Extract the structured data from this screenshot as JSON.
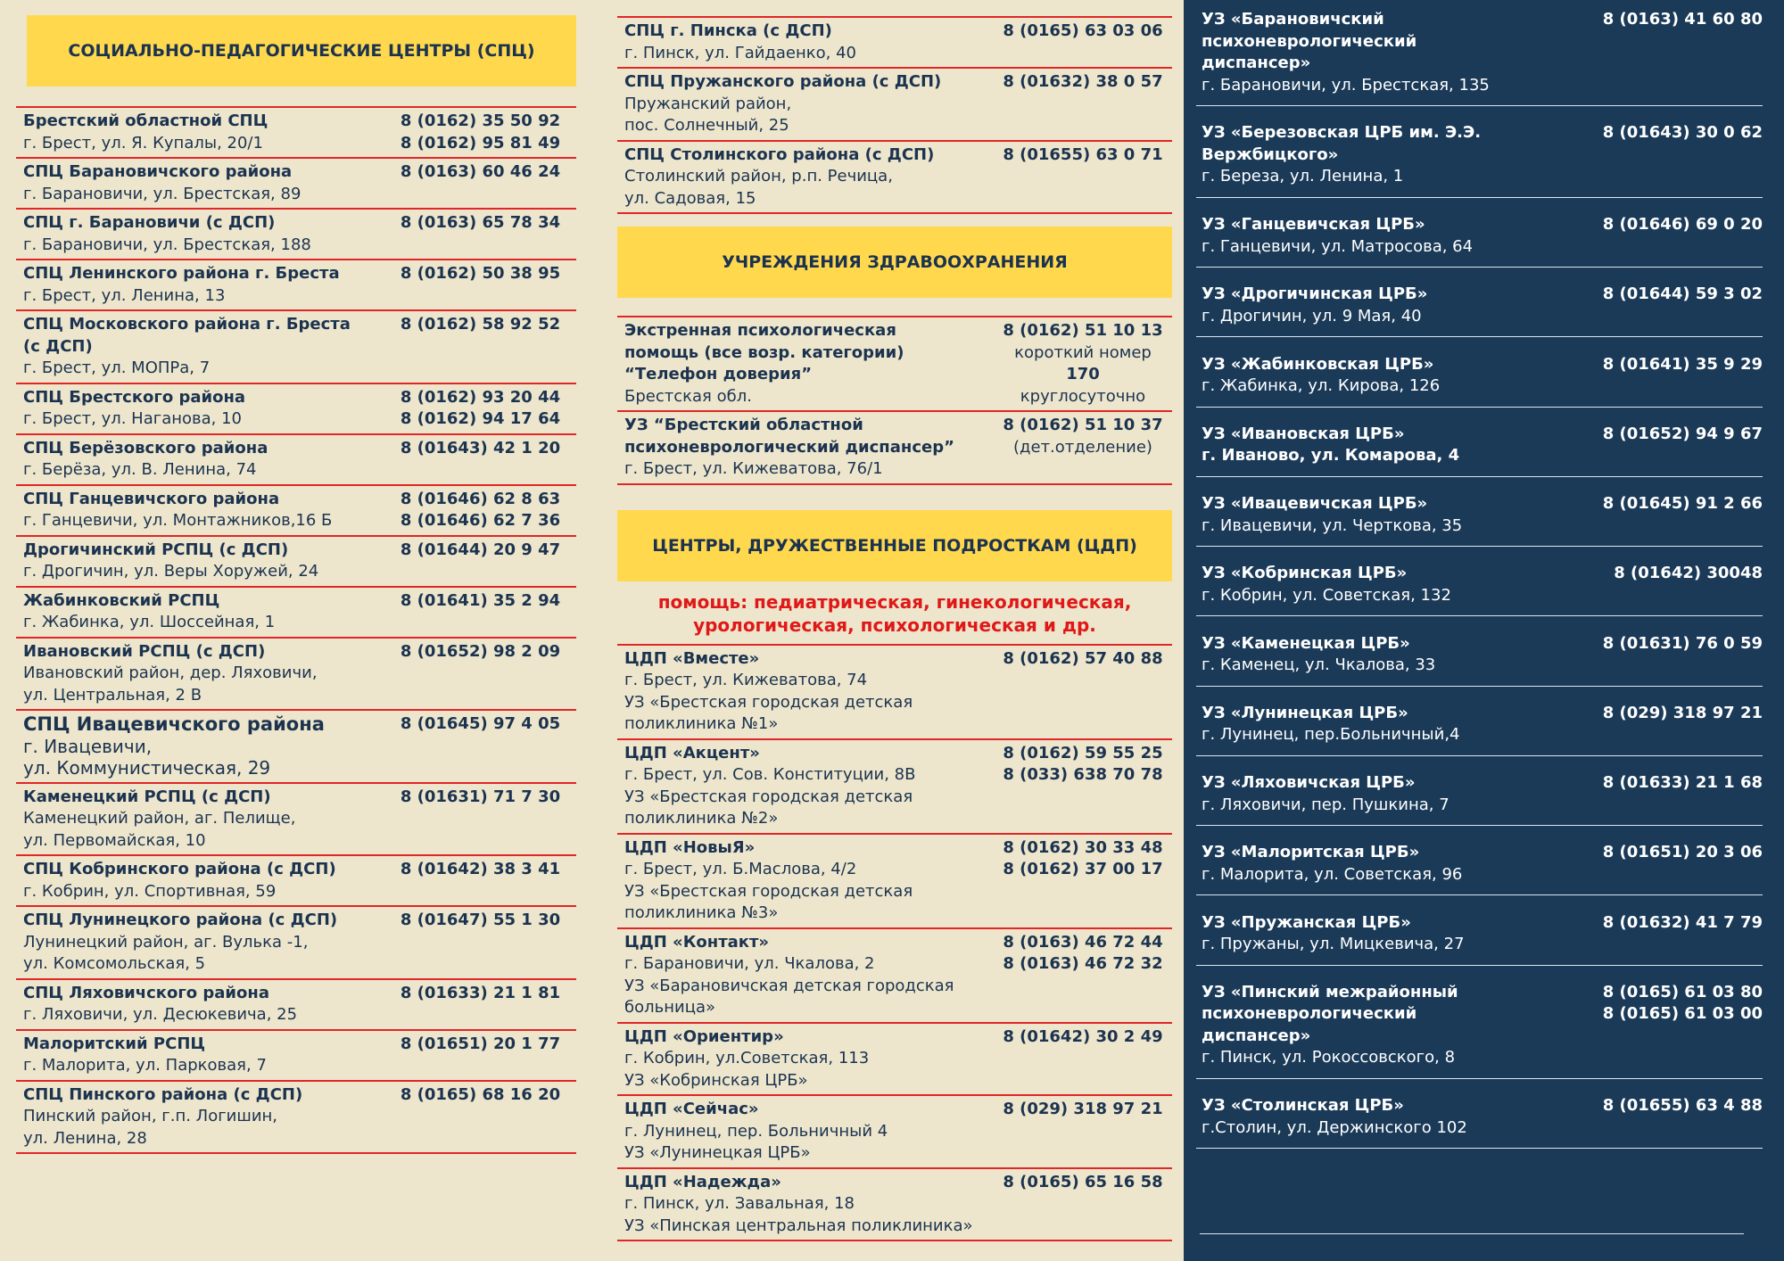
{
  "spc": {
    "title": "СОЦИАЛЬНО-ПЕДАГОГИЧЕСКИЕ ЦЕНТРЫ (СПЦ)",
    "entries": [
      {
        "name": [
          "Брестский областной СПЦ"
        ],
        "address": [
          "г. Брест, ул. Я. Купалы, 20/1"
        ],
        "phones": [
          "8 (0162) 35 50 92",
          "8 (0162) 95 81 49"
        ]
      },
      {
        "name": [
          "СПЦ Барановичского района"
        ],
        "address": [
          "г. Барановичи, ул. Брестская, 89"
        ],
        "phones": [
          "8 (0163) 60 46 24"
        ]
      },
      {
        "name": [
          "СПЦ г. Барановичи (с ДСП)"
        ],
        "address": [
          "г. Барановичи, ул. Брестская, 188"
        ],
        "phones": [
          "8 (0163) 65 78 34"
        ]
      },
      {
        "name": [
          "СПЦ Ленинского района г. Бреста"
        ],
        "address": [
          "г. Брест, ул. Ленина, 13"
        ],
        "phones": [
          "8 (0162) 50 38 95"
        ]
      },
      {
        "name": [
          "СПЦ Московского района г. Бреста",
          "(с ДСП)"
        ],
        "address": [
          "г. Брест, ул. МОПРа, 7"
        ],
        "phones": [
          "8 (0162) 58 92 52"
        ]
      },
      {
        "name": [
          "СПЦ Брестского района"
        ],
        "address": [
          "г. Брест, ул. Наганова, 10"
        ],
        "phones": [
          "8 (0162) 93 20 44",
          "8 (0162) 94 17 64"
        ]
      },
      {
        "name": [
          "СПЦ Берёзовского района"
        ],
        "address": [
          "г. Берёза, ул. В. Ленина, 74"
        ],
        "phones": [
          "8 (01643) 42 1 20"
        ]
      },
      {
        "name": [
          "СПЦ Ганцевичского района"
        ],
        "address": [
          "г. Ганцевичи, ул. Монтажников,16 Б"
        ],
        "phones": [
          "8 (01646) 62 8 63",
          "8 (01646) 62 7 36"
        ]
      },
      {
        "name": [
          "Дрогичинский РСПЦ (с ДСП)"
        ],
        "address": [
          "г. Дрогичин, ул. Веры Хоружей, 24"
        ],
        "phones": [
          "8 (01644) 20 9 47"
        ]
      },
      {
        "name": [
          "Жабинковский РСПЦ"
        ],
        "address": [
          "г. Жабинка, ул. Шоссейная, 1"
        ],
        "phones": [
          "8 (01641) 35 2 94"
        ]
      },
      {
        "name": [
          "Ивановский РСПЦ (с ДСП)"
        ],
        "address": [
          "Ивановский район, дер. Ляховичи,",
          "ул. Центральная, 2 В"
        ],
        "phones": [
          "8 (01652) 98 2 09"
        ]
      },
      {
        "name": [
          "СПЦ Ивацевичского района"
        ],
        "address": [
          "г. Ивацевичи,",
          "ул. Коммунистическая, 29"
        ],
        "phones": [
          "8 (01645) 97 4 05"
        ]
      },
      {
        "name": [
          "Каменецкий РСПЦ (с ДСП)"
        ],
        "address": [
          "Каменецкий район, аг. Пелище,",
          "ул. Первомайская, 10"
        ],
        "phones": [
          "8 (01631) 71 7 30"
        ]
      },
      {
        "name": [
          "СПЦ Кобринского района (с ДСП)"
        ],
        "address": [
          "г. Кобрин, ул. Спортивная, 59"
        ],
        "phones": [
          "8 (01642) 38 3 41"
        ]
      },
      {
        "name": [
          "СПЦ Лунинецкого района (с ДСП)"
        ],
        "address": [
          "Лунинецкий район, аг. Вулька -1,",
          "ул. Комсомольская, 5"
        ],
        "phones": [
          "8 (01647) 55 1 30"
        ]
      },
      {
        "name": [
          "СПЦ Ляховичского района"
        ],
        "address": [
          "г. Ляховичи, ул. Десюкевича, 25"
        ],
        "phones": [
          "8 (01633) 21 1 81"
        ]
      },
      {
        "name": [
          "Малоритский РСПЦ"
        ],
        "address": [
          "г. Малорита, ул. Парковая, 7"
        ],
        "phones": [
          "8 (01651) 20 1 77"
        ]
      },
      {
        "name": [
          "СПЦ Пинского района (с ДСП)"
        ],
        "address": [
          "Пинский район, г.п. Логишин,",
          "ул. Ленина, 28"
        ],
        "phones": [
          "8 (0165) 68 16 20"
        ]
      }
    ]
  },
  "spc_continued": {
    "entries": [
      {
        "name": [
          "СПЦ г. Пинска (с ДСП)"
        ],
        "address": [
          "г. Пинск, ул. Гайдаенко, 40"
        ],
        "phones": [
          "8 (0165) 63 03 06"
        ]
      },
      {
        "name": [
          "СПЦ Пружанского района (с ДСП)"
        ],
        "address": [
          "Пружанский район,",
          "пос. Солнечный, 25"
        ],
        "phones": [
          "8 (01632) 38 0 57"
        ]
      },
      {
        "name": [
          "СПЦ Столинского района (с ДСП)"
        ],
        "address": [
          "Столинский район, р.п. Речица,",
          "ул. Садовая, 15"
        ],
        "phones": [
          "8 (01655) 63 0 71"
        ]
      }
    ]
  },
  "health": {
    "title": "УЧРЕЖДЕНИЯ ЗДРАВООХРАНЕНИЯ",
    "entries": [
      {
        "name": [
          "Экстренная психологическая",
          "помощь  (все возр. категории)",
          "“Телефон доверия”"
        ],
        "address": [
          "Брестская обл."
        ],
        "phones": [
          "8 (0162) 51 10 13",
          "короткий номер",
          "170",
          "круглосуточно"
        ]
      },
      {
        "name": [
          "УЗ “Брестский областной",
          "психоневрологический диспансер”"
        ],
        "address": [
          "г. Брест, ул. Кижеватова, 76/1"
        ],
        "phones": [
          "8 (0162) 51 10 37",
          "(дет.отделение)"
        ]
      }
    ]
  },
  "cdp": {
    "title": "ЦЕНТРЫ, ДРУЖЕСТВЕННЫЕ ПОДРОСТКАМ (ЦДП)",
    "note": [
      "помощь: педиатрическая, гинекологическая,",
      "урологическая, психологическая и др."
    ],
    "entries": [
      {
        "name": [
          "ЦДП «Вместе»"
        ],
        "address": [
          "г. Брест, ул. Кижеватова, 74",
          "УЗ «Брестская городская детская поликлиника №1»"
        ],
        "phones": [
          "8 (0162) 57 40 88"
        ]
      },
      {
        "name": [
          "ЦДП «Акцент»"
        ],
        "address": [
          "г. Брест, ул. Сов. Конституции, 8В",
          "УЗ «Брестская городская детская поликлиника №2»"
        ],
        "phones": [
          "8 (0162) 59 55 25",
          "8 (033) 638 70 78"
        ]
      },
      {
        "name": [
          "ЦДП «НовыЯ»"
        ],
        "address": [
          "г. Брест, ул. Б.Маслова, 4/2",
          "УЗ «Брестская городская детская поликлиника №3»"
        ],
        "phones": [
          "8 (0162) 30 33 48",
          "8 (0162) 37 00 17"
        ]
      },
      {
        "name": [
          "ЦДП «Контакт»"
        ],
        "address": [
          "г. Барановичи, ул. Чкалова, 2",
          "УЗ «Барановичская детская городская больница»"
        ],
        "phones": [
          "8 (0163) 46 72 44",
          "8 (0163) 46 72 32"
        ]
      },
      {
        "name": [
          "ЦДП «Ориентир»"
        ],
        "address": [
          "г. Кобрин, ул.Советская, 113",
          "УЗ «Кобринская ЦРБ»"
        ],
        "phones": [
          "8 (01642) 30 2 49"
        ]
      },
      {
        "name": [
          "ЦДП «Сейчас»"
        ],
        "address": [
          "г. Лунинец, пер. Больничный 4",
          "УЗ «Лунинецкая ЦРБ»"
        ],
        "phones": [
          "8 (029) 318 97 21"
        ]
      },
      {
        "name": [
          "ЦДП «Надежда»"
        ],
        "address": [
          "г. Пинск, ул. Завальная, 18",
          "УЗ «Пинская центральная поликлиника»"
        ],
        "phones": [
          "8 (0165) 65 16 58"
        ]
      }
    ]
  },
  "hospitals": {
    "entries": [
      {
        "name": [
          "УЗ «Барановичский",
          "психоневрологический",
          "диспансер»"
        ],
        "address": [
          "г. Барановичи, ул. Брестская, 135"
        ],
        "phones": [
          "8 (0163) 41 60 80"
        ]
      },
      {
        "name": [
          "УЗ «Березовская ЦРБ им. Э.Э. Вержбицкого»"
        ],
        "address": [
          "г. Береза, ул. Ленина, 1"
        ],
        "phones": [
          "8 (01643) 30 0 62"
        ]
      },
      {
        "name": [
          "УЗ «Ганцевичская ЦРБ»"
        ],
        "address": [
          "г. Ганцевичи, ул. Матросова, 64"
        ],
        "phones": [
          "8 (01646) 69 0 20"
        ]
      },
      {
        "name": [
          "УЗ «Дрогичинская ЦРБ»"
        ],
        "address": [
          "г. Дрогичин, ул. 9 Мая, 40"
        ],
        "phones": [
          "8 (01644) 59 3 02"
        ]
      },
      {
        "name": [
          "УЗ «Жабинковская ЦРБ»"
        ],
        "address": [
          "г. Жабинка, ул. Кирова, 126"
        ],
        "phones": [
          "8 (01641) 35 9 29"
        ]
      },
      {
        "name": [
          "УЗ «Ивановская ЦРБ»"
        ],
        "address": [
          "г. Иваново, ул. Комарова, 4"
        ],
        "phones": [
          "8 (01652) 94 9 67"
        ]
      },
      {
        "name": [
          "УЗ «Ивацевичская ЦРБ»"
        ],
        "address": [
          "г. Ивацевичи, ул. Черткова, 35"
        ],
        "phones": [
          "8 (01645) 91 2 66"
        ]
      },
      {
        "name": [
          "УЗ «Кобринская ЦРБ»"
        ],
        "address": [
          "г. Кобрин, ул. Советская, 132"
        ],
        "phones": [
          "8 (01642) 30048"
        ]
      },
      {
        "name": [
          "УЗ «Каменецкая ЦРБ»"
        ],
        "address": [
          "г. Каменец, ул. Чкалова, 33"
        ],
        "phones": [
          "8 (01631) 76 0 59"
        ]
      },
      {
        "name": [
          "УЗ «Лунинецкая ЦРБ»"
        ],
        "address": [
          "г. Лунинец, пер.Больничный,4"
        ],
        "phones": [
          "8 (029) 318 97 21"
        ]
      },
      {
        "name": [
          "УЗ «Ляховичская ЦРБ»"
        ],
        "address": [
          "г. Ляховичи, пер. Пушкина, 7"
        ],
        "phones": [
          "8 (01633) 21 1 68"
        ]
      },
      {
        "name": [
          "УЗ «Малоритская ЦРБ»"
        ],
        "address": [
          "г. Малорита, ул. Советская, 96"
        ],
        "phones": [
          "8 (01651) 20 3 06"
        ]
      },
      {
        "name": [
          "УЗ «Пружанская ЦРБ»"
        ],
        "address": [
          "г. Пружаны, ул. Мицкевича, 27"
        ],
        "phones": [
          "8 (01632) 41 7 79"
        ]
      },
      {
        "name": [
          "УЗ «Пинский межрайонный",
          "психоневрологический",
          "диспансер»"
        ],
        "address": [
          "г. Пинск, ул. Рокоссовского, 8"
        ],
        "phones": [
          "8 (0165) 61 03 80",
          "8 (0165) 61 03 00"
        ]
      },
      {
        "name": [
          "УЗ «Столинская ЦРБ»"
        ],
        "address": [
          "г.Столин, ул. Держинского 102"
        ],
        "phones": [
          "8 (01655) 63 4 88"
        ]
      }
    ]
  }
}
